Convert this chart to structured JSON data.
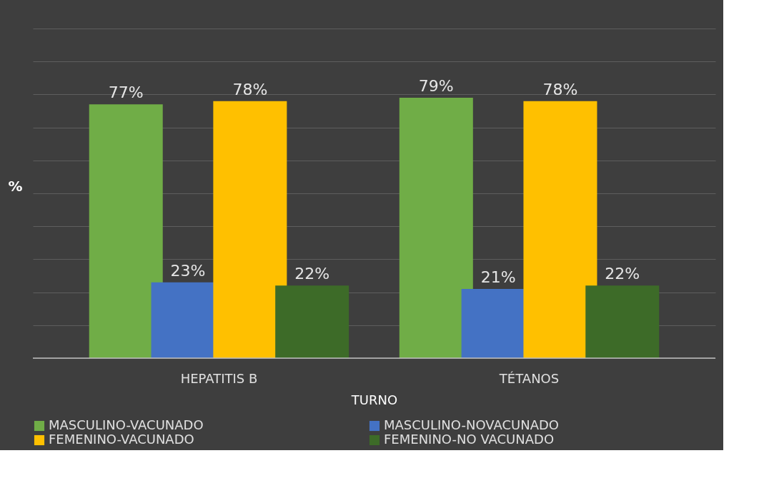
{
  "chart_data": {
    "type": "bar",
    "xlabel": "TURNO",
    "ylabel": "%",
    "categories": [
      "HEPATITIS B",
      "TÉTANOS"
    ],
    "series": [
      {
        "name": "MASCULINO-VACUNADO",
        "color": "#70ad47",
        "values": [
          77,
          79
        ],
        "value_labels": [
          "77%",
          "79%"
        ]
      },
      {
        "name": "MASCULINO-NOVACUNADO",
        "color": "#4472c4",
        "values": [
          23,
          21
        ],
        "value_labels": [
          "23%",
          "21%"
        ]
      },
      {
        "name": "FEMENINO-VACUNADO",
        "color": "#ffc000",
        "values": [
          78,
          78
        ],
        "value_labels": [
          "78%",
          "78%"
        ]
      },
      {
        "name": "FEMENINO-NO VACUNADO",
        "color": "#3d6b28",
        "values": [
          22,
          22
        ],
        "value_labels": [
          "22%",
          "22%"
        ]
      }
    ],
    "ylim": [
      0,
      100
    ],
    "yticks": [
      {
        "value": 0,
        "label": null
      },
      {
        "value": 10,
        "label": null
      },
      {
        "value": 20,
        "label": null
      },
      {
        "value": 30,
        "label": null
      },
      {
        "value": 40,
        "label": null
      },
      {
        "value": 50,
        "label": null
      },
      {
        "value": 60,
        "label": null
      },
      {
        "value": 70,
        "label": null
      },
      {
        "value": 80,
        "label": null
      },
      {
        "value": 90,
        "label": null
      },
      {
        "value": 100,
        "label": null
      }
    ],
    "grid": "y",
    "legend": "bottom",
    "tick_labels": "x"
  }
}
